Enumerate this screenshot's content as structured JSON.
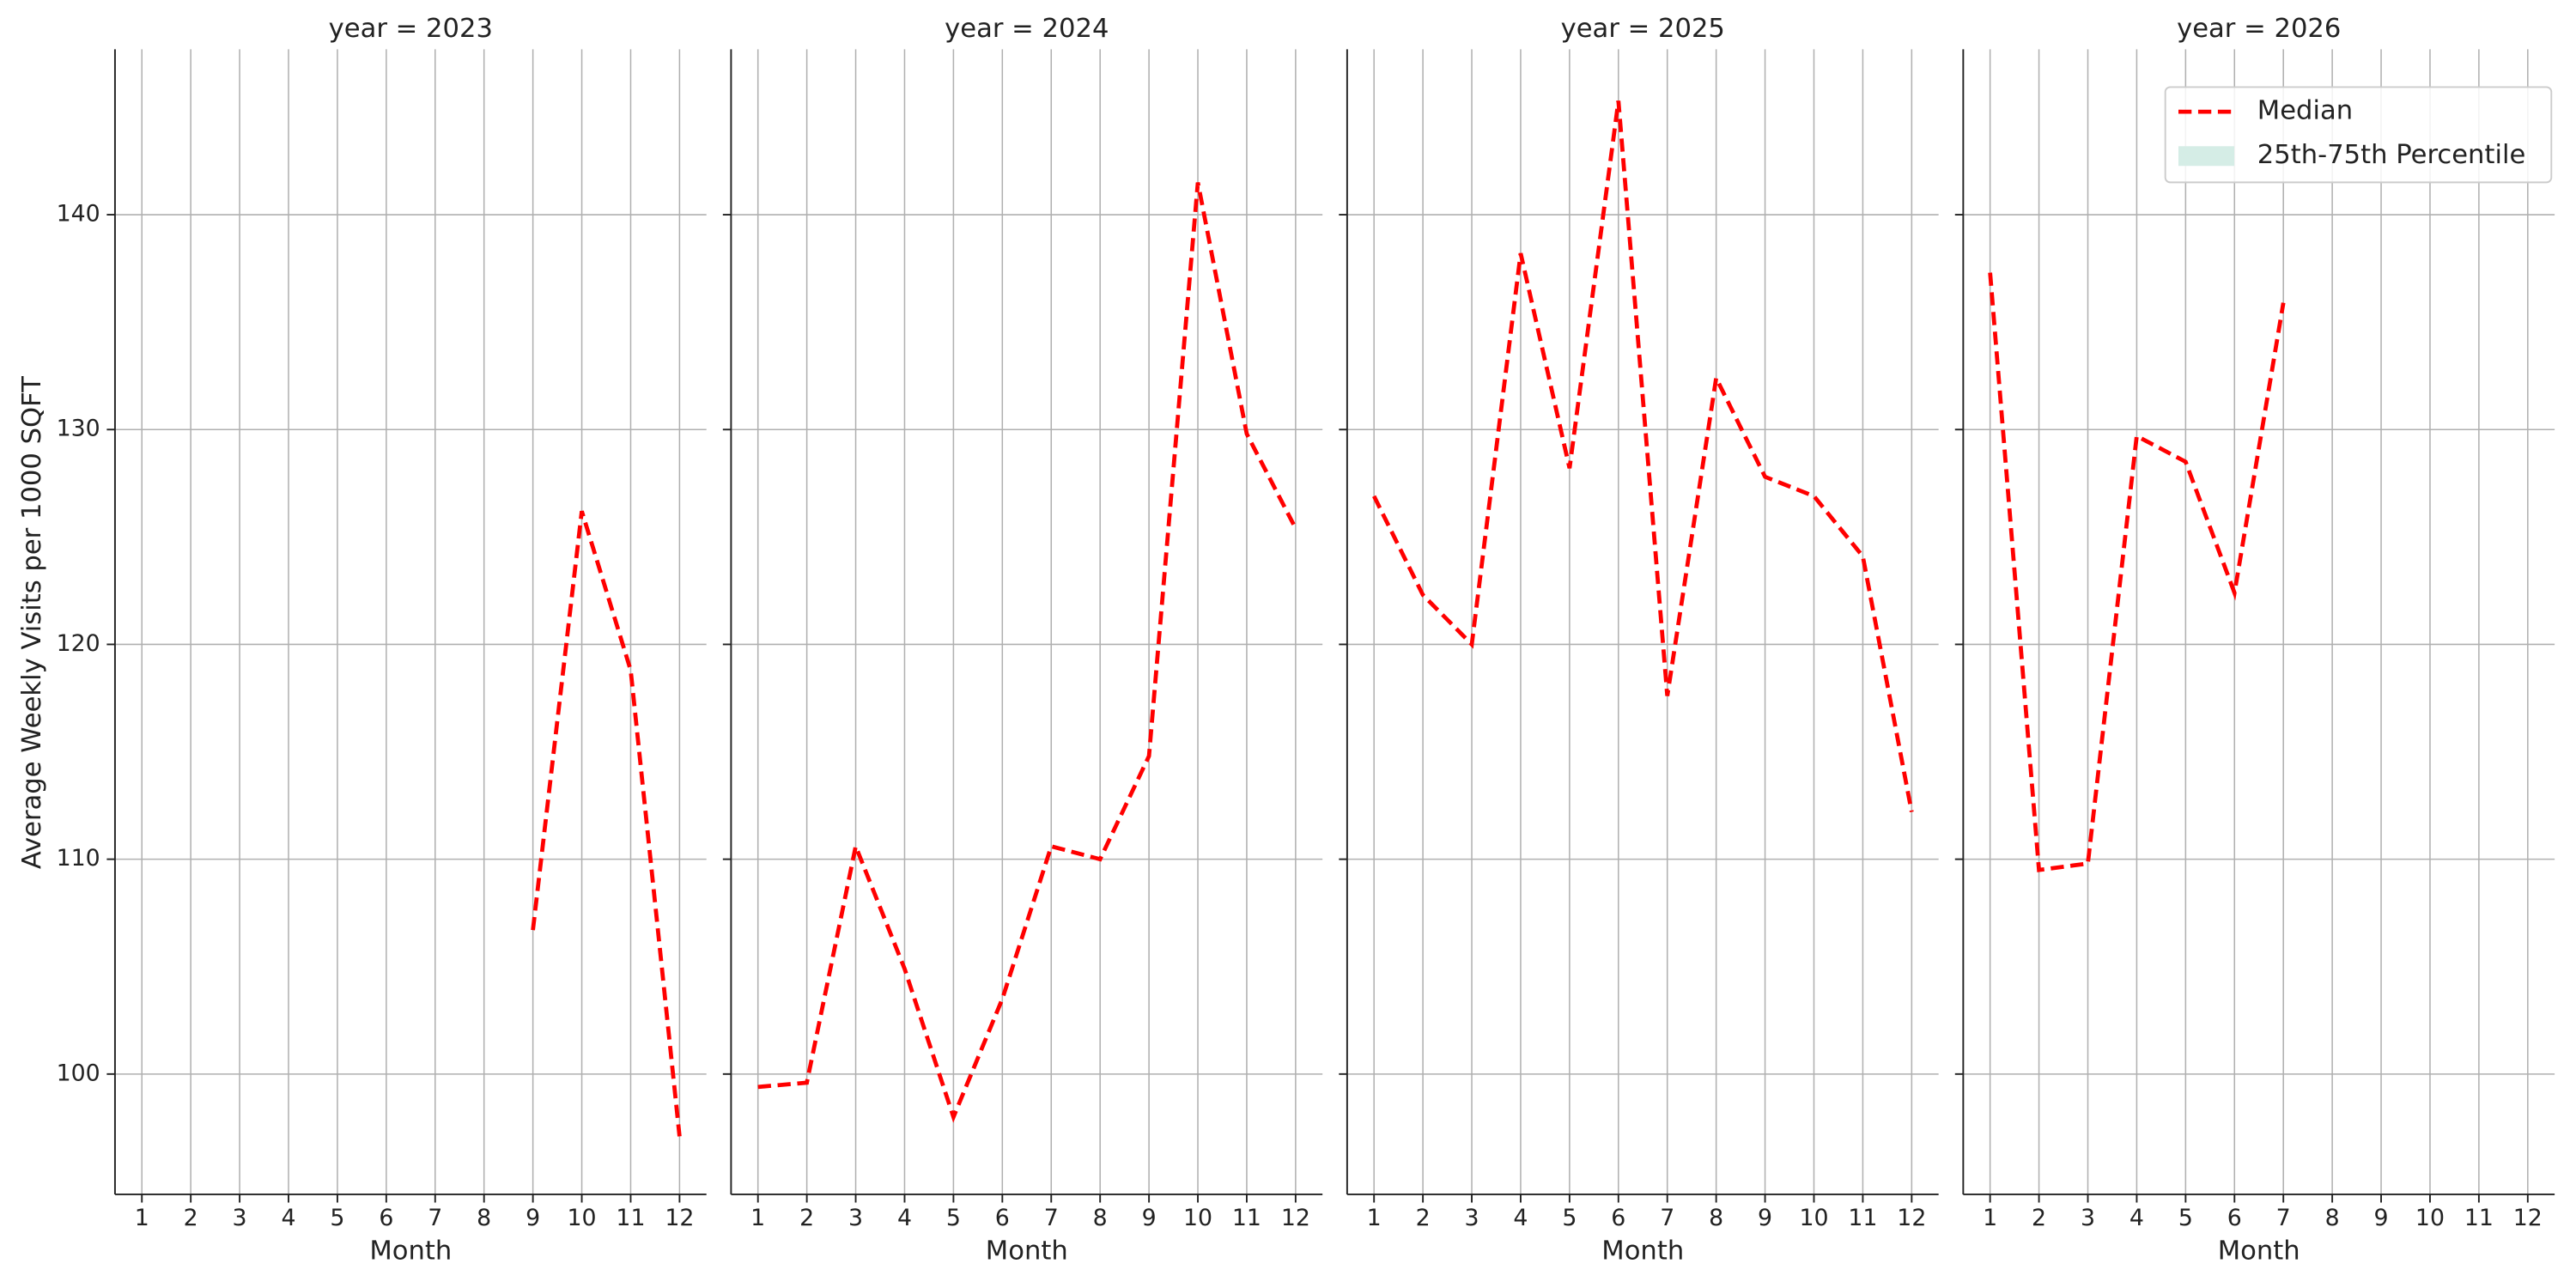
{
  "chart_data": {
    "type": "line",
    "xlabel": "Month",
    "ylabel": "Average Weekly Visits per 1000 SQFT",
    "x": [
      1,
      2,
      3,
      4,
      5,
      6,
      7,
      8,
      9,
      10,
      11,
      12
    ],
    "xlim": [
      0.45,
      12.55
    ],
    "ylim": [
      94.4,
      147.7
    ],
    "yticks": [
      100,
      110,
      120,
      130,
      140
    ],
    "grid": true,
    "legend_position": "upper right",
    "series": [
      {
        "name": "Median",
        "color": "#ff0000",
        "dashed": true
      },
      {
        "name": "25th-75th Percentile",
        "color": "#d5ede6"
      }
    ],
    "panels": [
      {
        "title": "year = 2023",
        "values": [
          null,
          null,
          null,
          null,
          null,
          null,
          null,
          null,
          106.7,
          126.2,
          118.8,
          97.1
        ]
      },
      {
        "title": "year = 2024",
        "values": [
          99.4,
          99.6,
          110.6,
          104.9,
          98.0,
          103.5,
          110.6,
          110.0,
          114.8,
          141.5,
          129.8,
          125.4
        ]
      },
      {
        "title": "year = 2025",
        "values": [
          126.9,
          122.3,
          120.0,
          138.2,
          128.2,
          145.3,
          117.6,
          132.4,
          127.8,
          126.9,
          124.1,
          112.2
        ]
      },
      {
        "title": "year = 2026",
        "values": [
          137.3,
          109.5,
          109.8,
          129.7,
          128.5,
          122.4,
          135.9,
          null,
          null,
          null,
          null,
          null
        ]
      }
    ]
  }
}
